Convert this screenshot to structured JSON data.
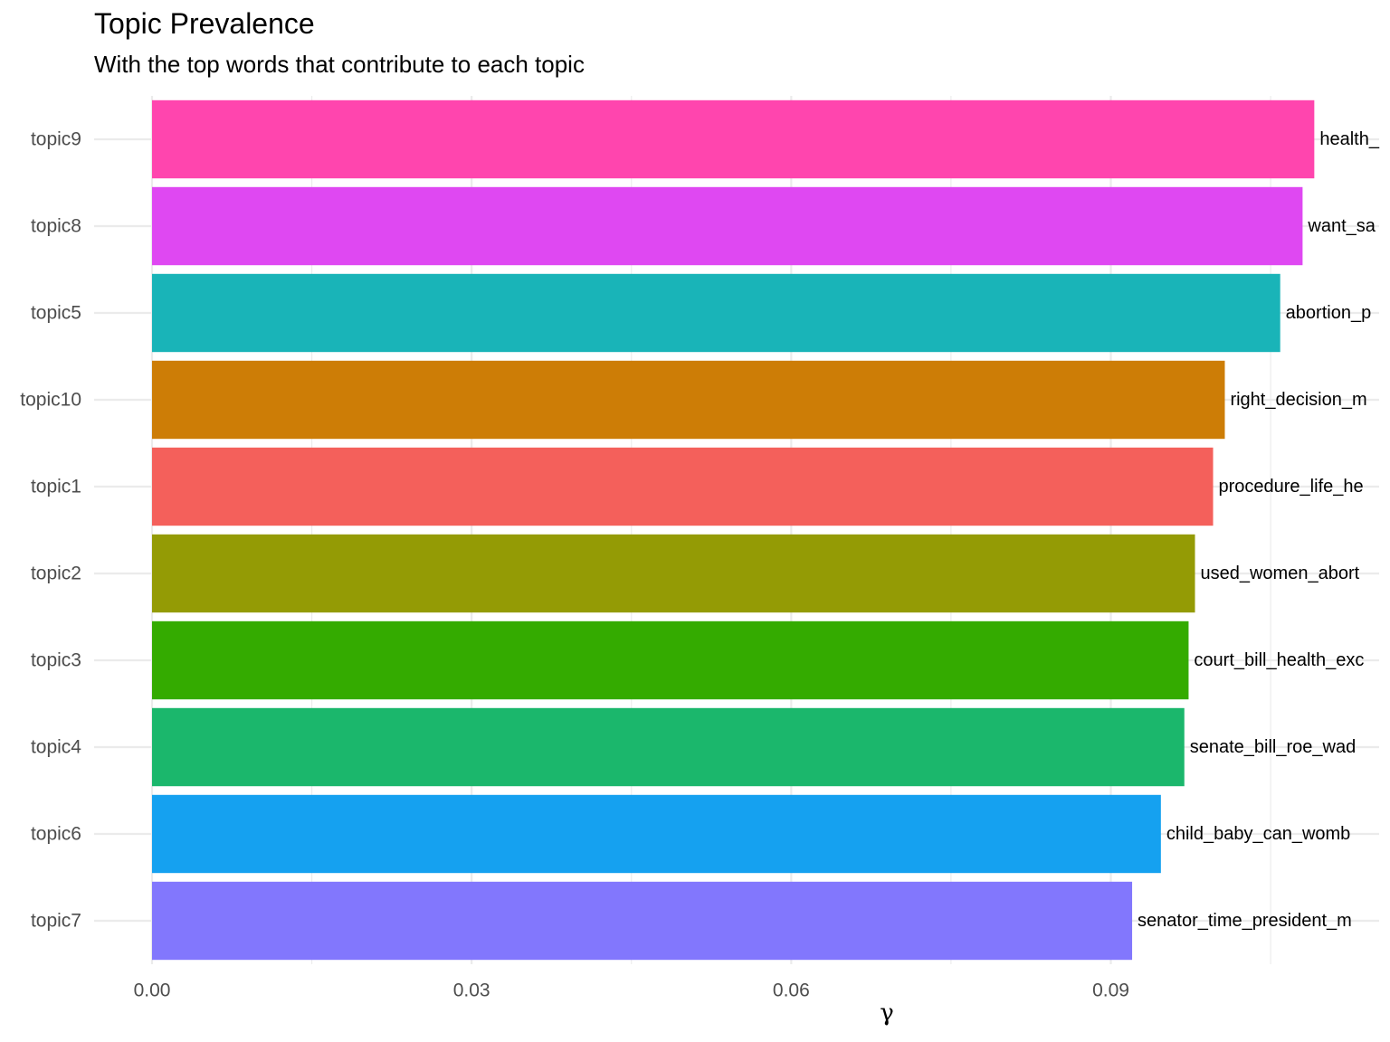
{
  "chart_data": {
    "type": "bar",
    "orientation": "horizontal",
    "title": "Topic Prevalence",
    "subtitle": "With the top words that contribute to each topic",
    "xlabel": "γ",
    "ylabel": "",
    "xlim": [
      0,
      0.1153
    ],
    "xticks": [
      0.0,
      0.03,
      0.06,
      0.09
    ],
    "xtick_labels": [
      "0.00",
      "0.03",
      "0.06",
      "0.09"
    ],
    "grid": true,
    "legend": "none",
    "categories": [
      "topic9",
      "topic8",
      "topic5",
      "topic10",
      "topic1",
      "topic2",
      "topic3",
      "topic4",
      "topic6",
      "topic7"
    ],
    "values": [
      0.1091,
      0.108,
      0.1059,
      0.1007,
      0.0996,
      0.0979,
      0.0973,
      0.0969,
      0.0947,
      0.092
    ],
    "labels": [
      "health_",
      "want_sa",
      "abortion_p",
      "right_decision_m",
      "procedure_life_he",
      "used_women_abort",
      "court_bill_health_exc",
      "senate_bill_roe_wad",
      "child_baby_can_womb",
      "senator_time_president_m"
    ],
    "colors": [
      "#FF45AE",
      "#DF48F2",
      "#19B4B8",
      "#CD7D06",
      "#F4605B",
      "#949B05",
      "#34AB00",
      "#1BB76C",
      "#15A1F0",
      "#8277FD"
    ]
  }
}
